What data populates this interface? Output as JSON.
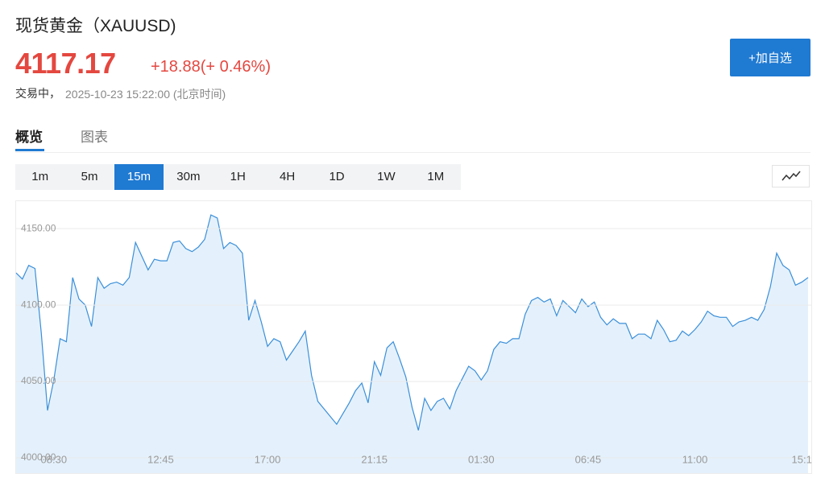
{
  "header": {
    "title": "现货黄金（XAUUSD)",
    "price": "4117.17",
    "change": "+18.88",
    "change_pct": "(+ 0.46%)",
    "status": "交易中，",
    "timestamp": "2025-10-23 15:22:00 (北京时间)",
    "watch_button": "+加自选"
  },
  "tabs": [
    "概览",
    "图表"
  ],
  "intervals": [
    "1m",
    "5m",
    "15m",
    "30m",
    "1H",
    "4H",
    "1D",
    "1W",
    "1M"
  ],
  "chart_data": {
    "type": "area",
    "categories": [
      null,
      null,
      null,
      null,
      null,
      null,
      "08:30",
      null,
      null,
      null,
      null,
      null,
      null,
      null,
      null,
      null,
      null,
      null,
      null,
      null,
      null,
      null,
      null,
      "12:45",
      null,
      null,
      null,
      null,
      null,
      null,
      null,
      null,
      null,
      null,
      null,
      null,
      null,
      null,
      null,
      null,
      "17:00",
      null,
      null,
      null,
      null,
      null,
      null,
      null,
      null,
      null,
      null,
      null,
      null,
      null,
      null,
      null,
      null,
      "21:15",
      null,
      null,
      null,
      null,
      null,
      null,
      null,
      null,
      null,
      null,
      null,
      null,
      null,
      null,
      null,
      null,
      "01:30",
      null,
      null,
      null,
      null,
      null,
      null,
      null,
      null,
      null,
      null,
      null,
      null,
      null,
      null,
      null,
      null,
      "06:45",
      null,
      null,
      null,
      null,
      null,
      null,
      null,
      null,
      null,
      null,
      null,
      null,
      null,
      null,
      null,
      null,
      "11:00",
      null,
      null,
      null,
      null,
      null,
      null,
      null,
      null,
      null,
      null,
      null,
      null,
      null,
      null,
      null,
      null,
      "15:1",
      null
    ],
    "values": [
      4121,
      4117,
      4126,
      4124,
      4082,
      4031,
      4051,
      4078,
      4076,
      4118,
      4104,
      4100,
      4086,
      4118,
      4111,
      4114,
      4115,
      4113,
      4118,
      4141,
      4132,
      4123,
      4130,
      4129,
      4129,
      4141,
      4142,
      4137,
      4135,
      4138,
      4143,
      4159,
      4157,
      4137,
      4141,
      4139,
      4134,
      4090,
      4103,
      4089,
      4073,
      4078,
      4076,
      4064,
      4070,
      4076,
      4083,
      4054,
      4037,
      4032,
      4027,
      4022,
      4029,
      4036,
      4044,
      4049,
      4036,
      4063,
      4054,
      4072,
      4076,
      4065,
      4053,
      4033,
      4018,
      4039,
      4031,
      4037,
      4039,
      4032,
      4044,
      4052,
      4060,
      4057,
      4051,
      4057,
      4071,
      4076,
      4075,
      4078,
      4078,
      4094,
      4103,
      4105,
      4102,
      4104,
      4093,
      4103,
      4099,
      4095,
      4104,
      4099,
      4102,
      4092,
      4087,
      4091,
      4088,
      4088,
      4078,
      4081,
      4081,
      4078,
      4090,
      4084,
      4076,
      4077,
      4083,
      4080,
      4084,
      4089,
      4096,
      4093,
      4092,
      4092,
      4086,
      4089,
      4090,
      4092,
      4090,
      4097,
      4112,
      4134,
      4126,
      4123,
      4113,
      4115,
      4118
    ],
    "color": "#3b8fd9",
    "fill": "#e4f1fc",
    "ylim": [
      3990,
      4168
    ],
    "yticks": [
      {
        "value": 4000,
        "label": "4000.00"
      },
      {
        "value": 4050,
        "label": "4050.00"
      },
      {
        "value": 4100,
        "label": "4100.00"
      },
      {
        "value": 4150,
        "label": "4150.00"
      }
    ],
    "grid": true
  }
}
